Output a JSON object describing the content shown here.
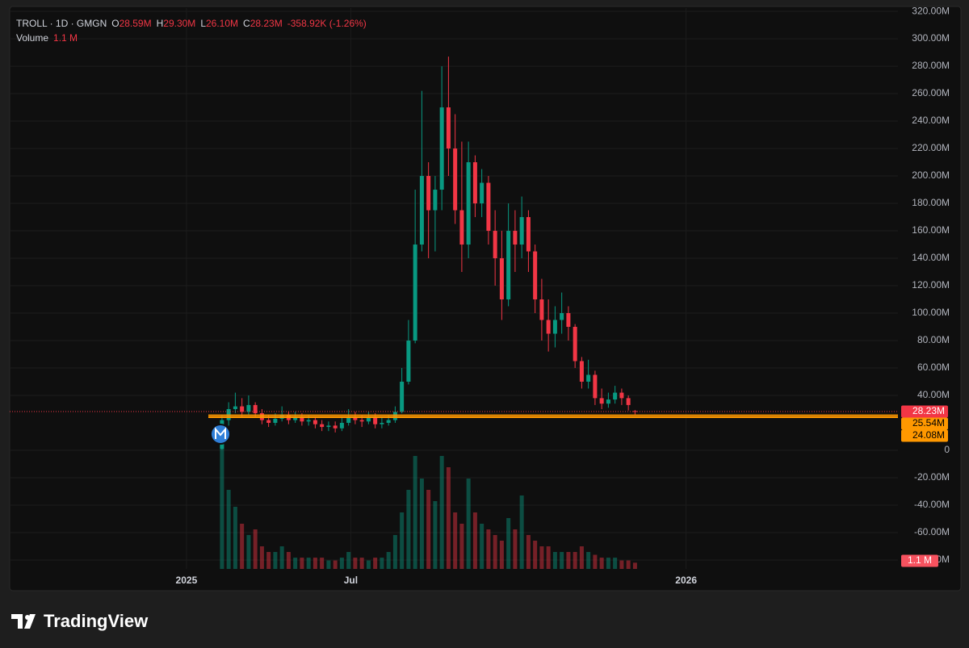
{
  "header": {
    "symbol": "TROLL · 1D · GMGN",
    "items": [
      {
        "key": "O",
        "value": "28.59M"
      },
      {
        "key": "H",
        "value": "29.30M"
      },
      {
        "key": "L",
        "value": "26.10M"
      },
      {
        "key": "C",
        "value": "28.23M"
      }
    ],
    "change": "-358.92K (-1.26%)",
    "volume_title": "Volume",
    "volume_value": "1.1 M"
  },
  "footer": {
    "brand": "TradingView"
  },
  "chart_data": {
    "type": "candlestick",
    "x": [
      0,
      3,
      6,
      9,
      12,
      15,
      18,
      21,
      24,
      27,
      30,
      33,
      36,
      39,
      42,
      45,
      48,
      51,
      54,
      57,
      60,
      63,
      66,
      69,
      72,
      75,
      78,
      81,
      84,
      87,
      90,
      93,
      96,
      99,
      102,
      105,
      108,
      111,
      114,
      117,
      120,
      123,
      126,
      129,
      132,
      135,
      138,
      141,
      144,
      147,
      150,
      153,
      156,
      159,
      162,
      165,
      168,
      171,
      174,
      177,
      180,
      183,
      186
    ],
    "open": [
      1,
      22,
      30,
      32,
      28,
      33,
      27,
      22,
      20,
      23,
      26,
      22,
      24,
      21,
      22,
      19,
      17,
      18,
      16,
      20,
      24,
      22,
      21,
      24,
      19,
      20,
      22,
      28,
      50,
      80,
      150,
      200,
      175,
      190,
      250,
      220,
      175,
      150,
      210,
      180,
      195,
      160,
      140,
      110,
      160,
      150,
      170,
      145,
      110,
      95,
      85,
      95,
      100,
      90,
      65,
      50,
      55,
      38,
      34,
      37,
      42,
      38,
      28.59
    ],
    "high": [
      26,
      35,
      42,
      38,
      40,
      35,
      30,
      26,
      27,
      32,
      28,
      28,
      27,
      26,
      24,
      22,
      21,
      21,
      24,
      30,
      28,
      25,
      28,
      27,
      24,
      26,
      32,
      60,
      95,
      190,
      262,
      210,
      200,
      280,
      287,
      245,
      225,
      225,
      215,
      205,
      200,
      175,
      160,
      180,
      175,
      185,
      175,
      150,
      125,
      110,
      105,
      115,
      105,
      92,
      68,
      66,
      58,
      45,
      42,
      47,
      45,
      40,
      29.3
    ],
    "low": [
      0.5,
      18,
      27,
      24,
      25,
      24,
      19,
      17,
      18,
      21,
      19,
      20,
      18,
      18,
      16,
      14,
      14,
      13,
      14,
      18,
      19,
      17,
      19,
      16,
      16,
      18,
      20,
      27,
      48,
      78,
      145,
      140,
      145,
      175,
      200,
      165,
      130,
      140,
      170,
      170,
      150,
      120,
      95,
      105,
      130,
      140,
      130,
      100,
      80,
      72,
      75,
      85,
      80,
      60,
      45,
      45,
      33,
      30,
      31,
      34,
      33,
      29,
      26.1
    ],
    "close": [
      22,
      30,
      32,
      28,
      33,
      27,
      22,
      20,
      23,
      26,
      22,
      24,
      21,
      22,
      19,
      17,
      18,
      16,
      20,
      24,
      22,
      21,
      24,
      19,
      20,
      22,
      28,
      50,
      80,
      150,
      200,
      175,
      190,
      250,
      220,
      175,
      150,
      210,
      180,
      195,
      160,
      140,
      110,
      160,
      150,
      170,
      145,
      110,
      95,
      85,
      95,
      100,
      90,
      65,
      50,
      55,
      38,
      34,
      37,
      42,
      38,
      33,
      28.23
    ],
    "volume": [
      22,
      14,
      11,
      8,
      6,
      7,
      4,
      3,
      3,
      4,
      3,
      2,
      2,
      2,
      2,
      2,
      1.5,
      1.5,
      2,
      3,
      2,
      2,
      1.5,
      2,
      2,
      3,
      6,
      10,
      14,
      20,
      16,
      14,
      12,
      20,
      18,
      10,
      8,
      16,
      10,
      8,
      7,
      6,
      5,
      9,
      7,
      13,
      6,
      5,
      4,
      4,
      3,
      3,
      3,
      3,
      4,
      3,
      2.5,
      2,
      2,
      2,
      1.5,
      1.5,
      1.1
    ],
    "up_color": "#089981",
    "down_color": "#f23645",
    "xlim": [
      -95.6,
      304.4
    ],
    "xticks": [
      {
        "value": -16,
        "label": "2025"
      },
      {
        "value": 58,
        "label": "Jul"
      },
      {
        "value": 209,
        "label": "2026"
      }
    ],
    "ylim": [
      -86.5,
      322.4
    ],
    "yticks": [
      {
        "value": 320,
        "label": "320.00M"
      },
      {
        "value": 300,
        "label": "300.00M"
      },
      {
        "value": 280,
        "label": "280.00M"
      },
      {
        "value": 260,
        "label": "260.00M"
      },
      {
        "value": 240,
        "label": "240.00M"
      },
      {
        "value": 220,
        "label": "220.00M"
      },
      {
        "value": 200,
        "label": "200.00M"
      },
      {
        "value": 180,
        "label": "180.00M"
      },
      {
        "value": 160,
        "label": "160.00M"
      },
      {
        "value": 140,
        "label": "140.00M"
      },
      {
        "value": 120,
        "label": "120.00M"
      },
      {
        "value": 100,
        "label": "100.00M"
      },
      {
        "value": 80,
        "label": "80.00M"
      },
      {
        "value": 60,
        "label": "60.00M"
      },
      {
        "value": 40,
        "label": "40.00M"
      },
      0,
      {
        "value": -20,
        "label": "-20.00M"
      },
      {
        "value": -40,
        "label": "-40.00M"
      },
      {
        "value": -60,
        "label": "-60.00M"
      },
      {
        "value": -80,
        "label": "-80.00M"
      }
    ],
    "volume_lim": [
      0,
      24
    ],
    "grid": true,
    "price_lines": [
      {
        "value": 28.23,
        "label": "28.23M",
        "color": "#f23645"
      },
      {
        "value": 25.54,
        "label": "25.54M",
        "color": "#ff9800"
      },
      {
        "value": 24.08,
        "label": "24.08M",
        "color": "#ff9800"
      }
    ]
  }
}
